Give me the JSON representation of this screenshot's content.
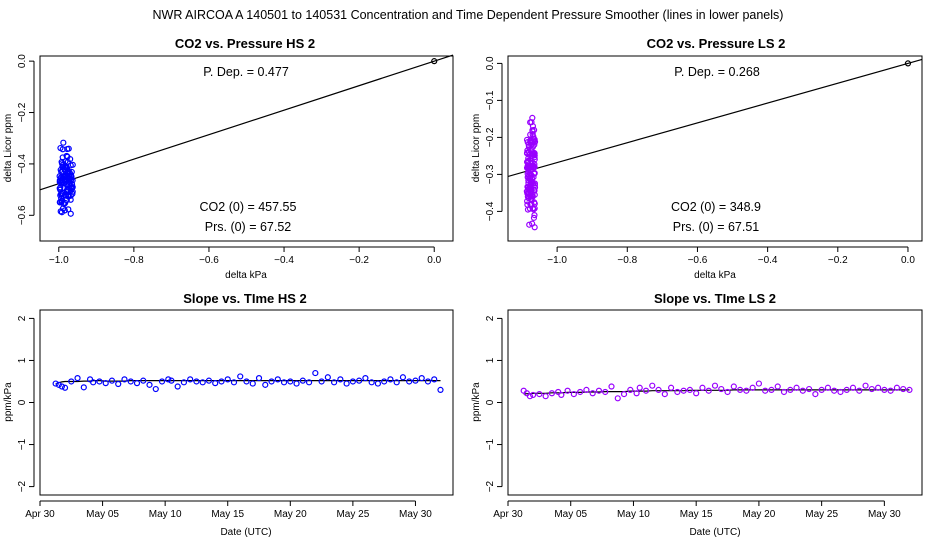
{
  "page_title": "NWR   AIRCOA A   140501 to 140531   Concentration and Time Dependent Pressure Smoother (lines in lower panels)",
  "colors": {
    "hs": "#0000ff",
    "ls": "#9900ff",
    "fit": "#000000"
  },
  "chart_data": [
    {
      "type": "scatter",
      "title": "CO2 vs. Pressure HS 2",
      "xlabel": "delta kPa",
      "ylabel": "delta Licor ppm",
      "xlim": [
        -1.05,
        0.05
      ],
      "ylim": [
        -0.7,
        0.02
      ],
      "xticks": [
        -1.0,
        -0.8,
        -0.6,
        -0.4,
        -0.2,
        0.0
      ],
      "xtick_labels": [
        "−1.0",
        "−0.8",
        "−0.6",
        "−0.4",
        "−0.2",
        "0.0"
      ],
      "yticks": [
        0.0,
        -0.2,
        -0.4,
        -0.6
      ],
      "ytick_labels": [
        "0.0",
        "−0.2",
        "−0.4",
        "−0.6"
      ],
      "annotations": {
        "pdep": "P. Dep. =  0.477",
        "co2": "CO2 (0) =  457.55",
        "prs": "Prs. (0) =  67.52"
      },
      "fit_line": {
        "slope": 0.477,
        "intercept": 0.0
      },
      "cluster": {
        "x_center": -0.98,
        "x_spread": 0.018,
        "y_min": -0.67,
        "y_max": -0.27,
        "count": 110,
        "seed": 7
      },
      "reference_point": [
        0.0,
        0.0
      ]
    },
    {
      "type": "scatter",
      "title": "CO2 vs. Pressure LS 2",
      "xlabel": "delta kPa",
      "ylabel": "delta Licor ppm",
      "xlim": [
        -1.14,
        0.04
      ],
      "ylim": [
        -0.48,
        0.02
      ],
      "xticks": [
        -1.0,
        -0.8,
        -0.6,
        -0.4,
        -0.2,
        0.0
      ],
      "xtick_labels": [
        "−1.0",
        "−0.8",
        "−0.6",
        "−0.4",
        "−0.2",
        "0.0"
      ],
      "yticks": [
        0.0,
        -0.1,
        -0.2,
        -0.3,
        -0.4
      ],
      "ytick_labels": [
        "0.0",
        "−0.1",
        "−0.2",
        "−0.3",
        "−0.4"
      ],
      "annotations": {
        "pdep": "P. Dep. =  0.268",
        "co2": "CO2 (0) =  348.9",
        "prs": "Prs. (0) =  67.51"
      },
      "fit_line": {
        "slope": 0.268,
        "intercept": 0.0
      },
      "cluster": {
        "x_center": -1.075,
        "x_spread": 0.012,
        "y_min": -0.47,
        "y_max": -0.1,
        "count": 140,
        "seed": 13
      },
      "reference_point": [
        0.0,
        0.0
      ]
    },
    {
      "type": "scatter",
      "title": "Slope vs. TIme HS 2",
      "xlabel": "Date (UTC)",
      "ylabel": "ppm/kPa",
      "xlim": [
        "2014-04-30",
        "2014-06-02"
      ],
      "ylim": [
        -2.2,
        2.2
      ],
      "yticks": [
        2,
        1,
        0,
        -1,
        -2
      ],
      "ytick_labels": [
        "2",
        "1",
        "0",
        "−1",
        "−2"
      ],
      "date_ticks": [
        "2014-04-30",
        "2014-05-05",
        "2014-05-10",
        "2014-05-15",
        "2014-05-20",
        "2014-05-25",
        "2014-05-30"
      ],
      "xtick_labels": [
        "Apr 30",
        "May 05",
        "May 10",
        "May 15",
        "May 20",
        "May 25",
        "May 30"
      ],
      "x": [
        "2014-05-01 06:00",
        "2014-05-01 12:00",
        "2014-05-01 18:00",
        "2014-05-02 00:00",
        "2014-05-02 12:00",
        "2014-05-03 00:00",
        "2014-05-03 12:00",
        "2014-05-04 00:00",
        "2014-05-04 06:00",
        "2014-05-04 18:00",
        "2014-05-05 06:00",
        "2014-05-05 18:00",
        "2014-05-06 06:00",
        "2014-05-06 18:00",
        "2014-05-07 06:00",
        "2014-05-07 18:00",
        "2014-05-08 06:00",
        "2014-05-08 18:00",
        "2014-05-09 06:00",
        "2014-05-09 18:00",
        "2014-05-10 06:00",
        "2014-05-10 12:00",
        "2014-05-11 00:00",
        "2014-05-11 12:00",
        "2014-05-12 00:00",
        "2014-05-12 12:00",
        "2014-05-13 00:00",
        "2014-05-13 12:00",
        "2014-05-14 00:00",
        "2014-05-14 12:00",
        "2014-05-15 00:00",
        "2014-05-15 12:00",
        "2014-05-16 00:00",
        "2014-05-16 12:00",
        "2014-05-17 00:00",
        "2014-05-17 12:00",
        "2014-05-18 00:00",
        "2014-05-18 12:00",
        "2014-05-19 00:00",
        "2014-05-19 12:00",
        "2014-05-20 00:00",
        "2014-05-20 12:00",
        "2014-05-21 00:00",
        "2014-05-21 12:00",
        "2014-05-22 00:00",
        "2014-05-22 12:00",
        "2014-05-23 00:00",
        "2014-05-23 12:00",
        "2014-05-24 00:00",
        "2014-05-24 12:00",
        "2014-05-25 00:00",
        "2014-05-25 12:00",
        "2014-05-26 00:00",
        "2014-05-26 12:00",
        "2014-05-27 00:00",
        "2014-05-27 12:00",
        "2014-05-28 00:00",
        "2014-05-28 12:00",
        "2014-05-29 00:00",
        "2014-05-29 12:00",
        "2014-05-30 00:00",
        "2014-05-30 12:00",
        "2014-05-31 00:00",
        "2014-05-31 12:00",
        "2014-06-01 00:00"
      ],
      "values": [
        0.45,
        0.42,
        0.38,
        0.35,
        0.5,
        0.58,
        0.36,
        0.55,
        0.48,
        0.5,
        0.46,
        0.52,
        0.44,
        0.55,
        0.5,
        0.46,
        0.52,
        0.42,
        0.32,
        0.5,
        0.55,
        0.52,
        0.38,
        0.48,
        0.55,
        0.5,
        0.48,
        0.52,
        0.46,
        0.5,
        0.55,
        0.48,
        0.62,
        0.5,
        0.45,
        0.58,
        0.42,
        0.5,
        0.55,
        0.48,
        0.5,
        0.45,
        0.52,
        0.48,
        0.7,
        0.5,
        0.6,
        0.48,
        0.55,
        0.45,
        0.5,
        0.52,
        0.58,
        0.48,
        0.45,
        0.5,
        0.55,
        0.48,
        0.6,
        0.5,
        0.52,
        0.58,
        0.5,
        0.55,
        0.3
      ],
      "fit_values": [
        0.44,
        0.47,
        0.49,
        0.5,
        0.5,
        0.5,
        0.51,
        0.51,
        0.52,
        0.52,
        0.51,
        0.51,
        0.51,
        0.51,
        0.52,
        0.52,
        0.52,
        0.52,
        0.52,
        0.52,
        0.52,
        0.52,
        0.52,
        0.52,
        0.52,
        0.52,
        0.52,
        0.52,
        0.52,
        0.52,
        0.52,
        0.52,
        0.52,
        0.52,
        0.52,
        0.52,
        0.52,
        0.52,
        0.52,
        0.52,
        0.52,
        0.52,
        0.52,
        0.52,
        0.52,
        0.52,
        0.52,
        0.52,
        0.52,
        0.52,
        0.52,
        0.52,
        0.52,
        0.52,
        0.52,
        0.52,
        0.52,
        0.52,
        0.52,
        0.52,
        0.52,
        0.52,
        0.52,
        0.52,
        0.52
      ]
    },
    {
      "type": "scatter",
      "title": "Slope vs. TIme LS 2",
      "xlabel": "Date (UTC)",
      "ylabel": "ppm/kPa",
      "xlim": [
        "2014-04-30",
        "2014-06-02"
      ],
      "ylim": [
        -2.2,
        2.2
      ],
      "yticks": [
        2,
        1,
        0,
        -1,
        -2
      ],
      "ytick_labels": [
        "2",
        "1",
        "0",
        "−1",
        "−2"
      ],
      "date_ticks": [
        "2014-04-30",
        "2014-05-05",
        "2014-05-10",
        "2014-05-15",
        "2014-05-20",
        "2014-05-25",
        "2014-05-30"
      ],
      "xtick_labels": [
        "Apr 30",
        "May 05",
        "May 10",
        "May 15",
        "May 20",
        "May 25",
        "May 30"
      ],
      "x": [
        "2014-05-01 06:00",
        "2014-05-01 12:00",
        "2014-05-01 18:00",
        "2014-05-02 00:00",
        "2014-05-02 12:00",
        "2014-05-03 00:00",
        "2014-05-03 12:00",
        "2014-05-04 00:00",
        "2014-05-04 06:00",
        "2014-05-04 18:00",
        "2014-05-05 06:00",
        "2014-05-05 18:00",
        "2014-05-06 06:00",
        "2014-05-06 18:00",
        "2014-05-07 06:00",
        "2014-05-07 18:00",
        "2014-05-08 06:00",
        "2014-05-08 18:00",
        "2014-05-09 06:00",
        "2014-05-09 18:00",
        "2014-05-10 06:00",
        "2014-05-10 12:00",
        "2014-05-11 00:00",
        "2014-05-11 12:00",
        "2014-05-12 00:00",
        "2014-05-12 12:00",
        "2014-05-13 00:00",
        "2014-05-13 12:00",
        "2014-05-14 00:00",
        "2014-05-14 12:00",
        "2014-05-15 00:00",
        "2014-05-15 12:00",
        "2014-05-16 00:00",
        "2014-05-16 12:00",
        "2014-05-17 00:00",
        "2014-05-17 12:00",
        "2014-05-18 00:00",
        "2014-05-18 12:00",
        "2014-05-19 00:00",
        "2014-05-19 12:00",
        "2014-05-20 00:00",
        "2014-05-20 12:00",
        "2014-05-21 00:00",
        "2014-05-21 12:00",
        "2014-05-22 00:00",
        "2014-05-22 12:00",
        "2014-05-23 00:00",
        "2014-05-23 12:00",
        "2014-05-24 00:00",
        "2014-05-24 12:00",
        "2014-05-25 00:00",
        "2014-05-25 12:00",
        "2014-05-26 00:00",
        "2014-05-26 12:00",
        "2014-05-27 00:00",
        "2014-05-27 12:00",
        "2014-05-28 00:00",
        "2014-05-28 12:00",
        "2014-05-29 00:00",
        "2014-05-29 12:00",
        "2014-05-30 00:00",
        "2014-05-30 12:00",
        "2014-05-31 00:00",
        "2014-05-31 12:00",
        "2014-06-01 00:00"
      ],
      "values": [
        0.28,
        0.22,
        0.15,
        0.18,
        0.2,
        0.15,
        0.22,
        0.25,
        0.18,
        0.28,
        0.2,
        0.25,
        0.3,
        0.22,
        0.28,
        0.25,
        0.38,
        0.1,
        0.2,
        0.3,
        0.22,
        0.35,
        0.28,
        0.4,
        0.3,
        0.2,
        0.35,
        0.25,
        0.28,
        0.3,
        0.22,
        0.35,
        0.28,
        0.4,
        0.32,
        0.25,
        0.38,
        0.3,
        0.28,
        0.35,
        0.45,
        0.28,
        0.3,
        0.38,
        0.25,
        0.3,
        0.35,
        0.28,
        0.32,
        0.2,
        0.3,
        0.35,
        0.28,
        0.25,
        0.3,
        0.35,
        0.28,
        0.4,
        0.32,
        0.35,
        0.3,
        0.28,
        0.35,
        0.32,
        0.3
      ],
      "fit_values": [
        0.2,
        0.21,
        0.21,
        0.22,
        0.22,
        0.22,
        0.23,
        0.23,
        0.23,
        0.24,
        0.24,
        0.24,
        0.25,
        0.25,
        0.25,
        0.26,
        0.26,
        0.26,
        0.26,
        0.27,
        0.27,
        0.27,
        0.27,
        0.28,
        0.28,
        0.28,
        0.28,
        0.28,
        0.28,
        0.29,
        0.29,
        0.29,
        0.29,
        0.29,
        0.29,
        0.29,
        0.3,
        0.3,
        0.3,
        0.3,
        0.3,
        0.3,
        0.3,
        0.3,
        0.3,
        0.3,
        0.3,
        0.3,
        0.3,
        0.3,
        0.3,
        0.3,
        0.3,
        0.3,
        0.3,
        0.3,
        0.3,
        0.3,
        0.3,
        0.3,
        0.3,
        0.3,
        0.3,
        0.3,
        0.3
      ]
    }
  ]
}
